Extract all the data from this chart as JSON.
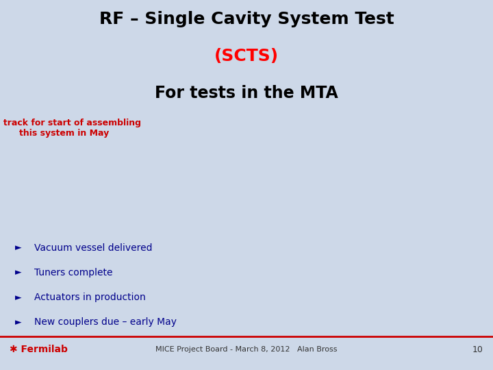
{
  "background_color": "#cdd8e8",
  "title_line1": "RF – Single Cavity System Test",
  "title_line2": "(SCTS)",
  "title_line3": "For tests in the MTA",
  "title_color": "#000000",
  "scts_color": "#ff0000",
  "subtitle_text": "On track for start of assembling\nthis system in May",
  "subtitle_color": "#cc0000",
  "bullet_items": [
    "Vacuum vessel delivered",
    "Tuners complete",
    "Actuators in production",
    "New couplers due – early May"
  ],
  "bullet_color": "#00008b",
  "footer_text": "MICE Project Board - March 8, 2012   Alan Bross",
  "footer_color": "#333333",
  "page_number": "10",
  "fermilab_color": "#cc0000",
  "footer_line_color": "#cc0000"
}
